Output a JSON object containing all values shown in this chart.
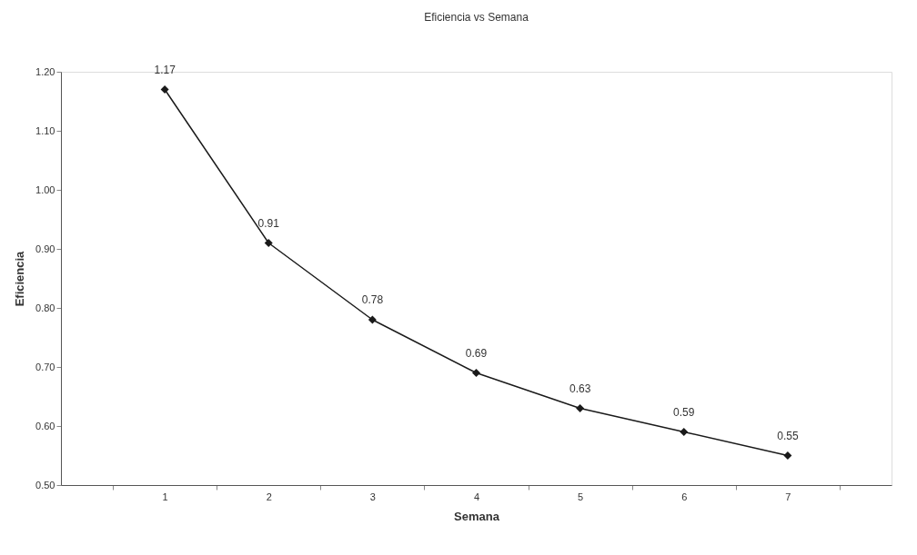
{
  "chart_data": {
    "type": "line",
    "title": "Eficiencia vs Semana",
    "xlabel": "Semana",
    "ylabel": "Eficiencia",
    "categories": [
      "1",
      "2",
      "3",
      "4",
      "5",
      "6",
      "7"
    ],
    "series": [
      {
        "color": "#1a1a1a",
        "values": [
          1.17,
          0.91,
          0.78,
          0.69,
          0.63,
          0.59,
          0.55
        ]
      }
    ],
    "ylim": [
      0.5,
      1.2
    ],
    "yticks": [
      {
        "value": 0.5,
        "label": "0.50"
      },
      {
        "value": 0.6,
        "label": "0.60"
      },
      {
        "value": 0.7,
        "label": "0.70"
      },
      {
        "value": 0.8,
        "label": "0.80"
      },
      {
        "value": 0.9,
        "label": "0.90"
      },
      {
        "value": 1.0,
        "label": "1.00"
      },
      {
        "value": 1.1,
        "label": "1.10"
      },
      {
        "value": 1.2,
        "label": "1.20"
      }
    ],
    "data_labels": true,
    "marker": "diamond",
    "line_style": "solid",
    "grid": false
  }
}
